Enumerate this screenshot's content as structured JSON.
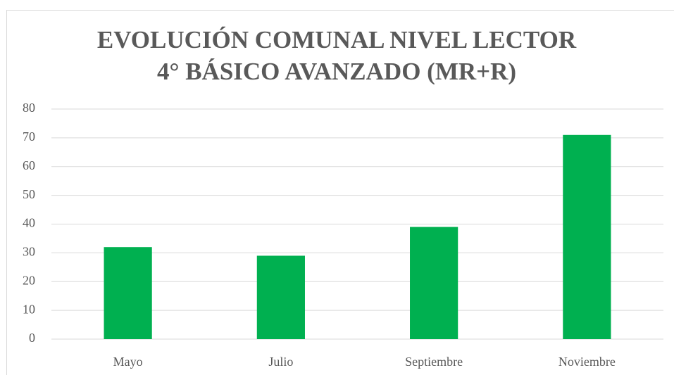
{
  "chart_data": {
    "type": "bar",
    "title": [
      "EVOLUCIÓN COMUNAL NIVEL LECTOR",
      "4° BÁSICO  AVANZADO (MR+R)"
    ],
    "categories": [
      "Mayo",
      "Julio",
      "Septiembre",
      "Noviembre"
    ],
    "values": [
      32,
      29,
      39,
      71
    ],
    "color": "#00b050",
    "ylim": [
      0,
      80
    ],
    "yticks": [
      0,
      10,
      20,
      30,
      40,
      50,
      60,
      70,
      80
    ],
    "grid": true
  }
}
